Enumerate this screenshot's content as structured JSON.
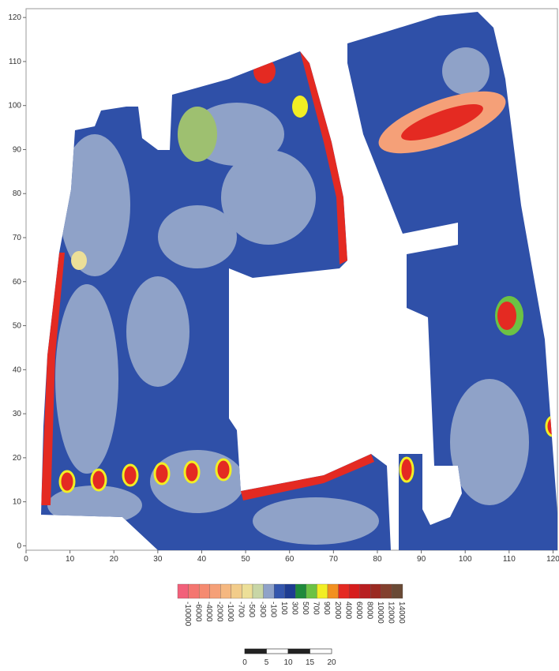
{
  "chart_data": {
    "type": "contour",
    "xlim": [
      0,
      121
    ],
    "ylim": [
      -1,
      122
    ],
    "xticks": [
      0,
      10,
      20,
      30,
      40,
      50,
      60,
      70,
      80,
      90,
      100,
      110,
      120
    ],
    "yticks": [
      0,
      10,
      20,
      30,
      40,
      50,
      60,
      70,
      80,
      90,
      100,
      110,
      120
    ],
    "colorbar": {
      "levels": [
        -10000,
        -6000,
        -4000,
        -2000,
        -1000,
        -700,
        -500,
        -300,
        -100,
        100,
        300,
        500,
        700,
        900,
        2000,
        4000,
        6000,
        8000,
        10000,
        12000,
        14000
      ],
      "colors": [
        "#f2607a",
        "#f47670",
        "#f58a70",
        "#f5a078",
        "#f5b880",
        "#f2cc8a",
        "#ecdf98",
        "#c8d6a6",
        "#8fa2c8",
        "#3456ad",
        "#1e3c92",
        "#1f8a3c",
        "#6cc244",
        "#f2ee24",
        "#f29020",
        "#e42a22",
        "#d61c1c",
        "#b81e20",
        "#9a2a22",
        "#82402e",
        "#6a4a36"
      ]
    },
    "scale_bar": {
      "ticks": [
        0,
        5,
        10,
        15,
        20
      ]
    }
  }
}
